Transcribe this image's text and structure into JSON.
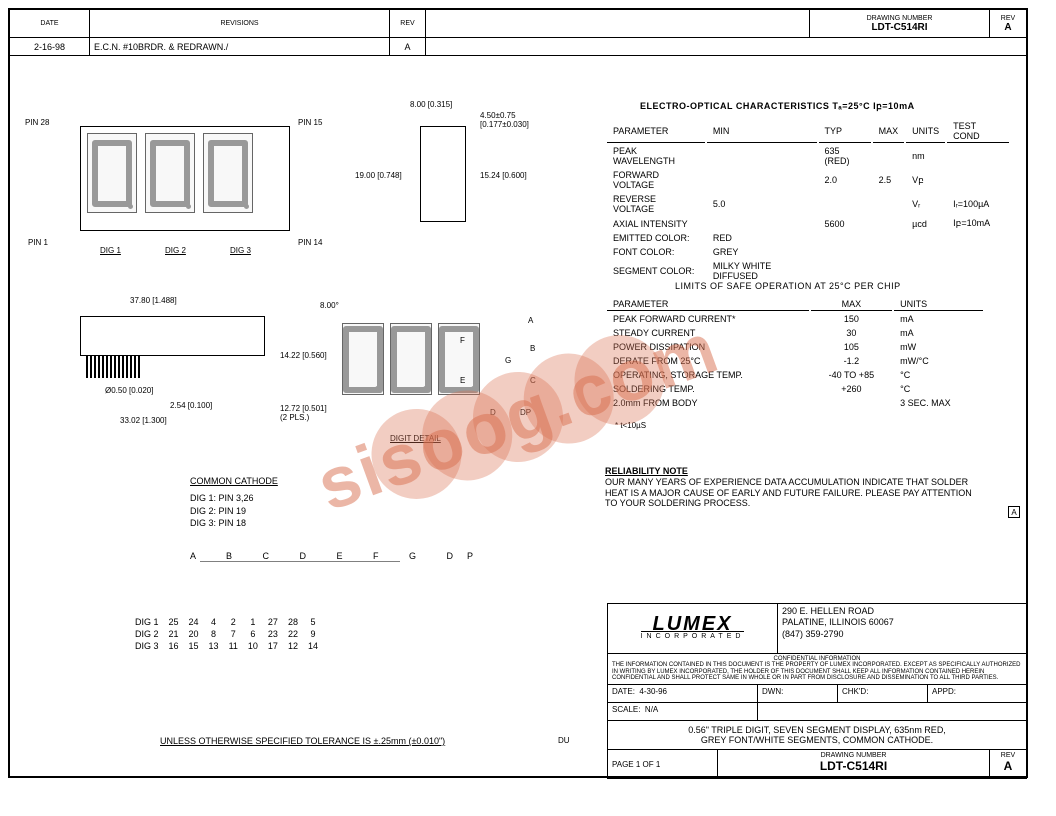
{
  "header": {
    "date_label": "DATE",
    "date_value": "2-16-98",
    "revisions_label": "REVISIONS",
    "revisions_value": "E.C.N. #10BRDR. & REDRAWN./",
    "rev_label": "REV",
    "rev_value": "A",
    "drawing_label": "DRAWING NUMBER",
    "drawing_value": "LDT-C514RI",
    "rev2_value": "A"
  },
  "electro": {
    "title": "ELECTRO-OPTICAL CHARACTERISTICS  Tₐ=25°C  Iբ=10mA",
    "cols": [
      "PARAMETER",
      "MIN",
      "TYP",
      "MAX",
      "UNITS",
      "TEST COND"
    ],
    "rows": [
      [
        "PEAK WAVELENGTH",
        "",
        "635 (RED)",
        "",
        "nm",
        ""
      ],
      [
        "FORWARD VOLTAGE",
        "",
        "2.0",
        "2.5",
        "Vբ",
        ""
      ],
      [
        "REVERSE VOLTAGE",
        "5.0",
        "",
        "",
        "Vᵣ",
        "Iᵣ=100µA"
      ],
      [
        "AXIAL INTENSITY",
        "",
        "5600",
        "",
        "µcd",
        "Iբ=10mA"
      ],
      [
        "EMITTED COLOR:",
        "RED",
        "",
        "",
        "",
        ""
      ],
      [
        "FONT COLOR:",
        "GREY",
        "",
        "",
        "",
        ""
      ],
      [
        "SEGMENT COLOR:",
        "MILKY WHITE DIFFUSED",
        "",
        "",
        "",
        ""
      ]
    ]
  },
  "limits": {
    "title": "LIMITS OF SAFE OPERATION AT 25°C PER CHIP",
    "cols": [
      "PARAMETER",
      "MAX",
      "UNITS"
    ],
    "rows": [
      [
        "PEAK FORWARD CURRENT*",
        "150",
        "mA"
      ],
      [
        "STEADY CURRENT",
        "30",
        "mA"
      ],
      [
        "POWER DISSIPATION",
        "105",
        "mW"
      ],
      [
        "DERATE FROM 25°C",
        "-1.2",
        "mW/°C"
      ],
      [
        "OPERATING, STORAGE TEMP.",
        "-40 TO +85",
        "°C"
      ],
      [
        "SOLDERING TEMP.",
        "+260",
        "°C"
      ],
      [
        "2.0mm FROM BODY",
        "",
        "3 SEC. MAX"
      ]
    ],
    "note": "* t<10µS"
  },
  "reliability": {
    "title": "RELIABILITY NOTE",
    "text": "OUR MANY YEARS OF EXPERIENCE DATA ACCUMULATION INDICATE THAT SOLDER HEAT IS A MAJOR CAUSE OF EARLY AND FUTURE FAILURE. PLEASE PAY ATTENTION TO YOUR SOLDERING PROCESS."
  },
  "titleblock": {
    "company": "LUMEX",
    "company_sub": "INCORPORATED",
    "addr1": "290 E. HELLEN ROAD",
    "addr2": "PALATINE, ILLINOIS  60067",
    "phone": "(847) 359-2790",
    "confidential_title": "CONFIDENTIAL INFORMATION",
    "confidential": "THE INFORMATION CONTAINED IN THIS DOCUMENT IS THE PROPERTY OF LUMEX INCORPORATED. EXCEPT AS SPECIFICALLY AUTHORIZED IN WRITING BY LUMEX INCORPORATED, THE HOLDER OF THIS DOCUMENT SHALL KEEP ALL INFORMATION CONTAINED HEREIN CONFIDENTIAL AND SHALL PROTECT SAME IN WHOLE OR IN PART FROM DISCLOSURE AND DISSEMINATION TO ALL THIRD PARTIES.",
    "date_label": "DATE:",
    "date_value": "4-30-96",
    "dwn_label": "DWN:",
    "chkd_label": "CHK'D:",
    "appd_label": "APPD:",
    "scale_label": "SCALE:",
    "scale_value": "N/A",
    "description1": "0.56\" TRIPLE DIGIT, SEVEN SEGMENT DISPLAY, 635nm RED,",
    "description2": "GREY FONT/WHITE SEGMENTS, COMMON CATHODE.",
    "page_label": "PAGE  1  OF  1",
    "drawing_label": "DRAWING NUMBER",
    "drawing_value": "LDT-C514RI",
    "rev_label": "REV",
    "rev_value": "A"
  },
  "dims": {
    "pin28": "PIN 28",
    "pin15": "PIN 15",
    "pin1": "PIN 1",
    "pin14": "PIN 14",
    "dig1": "DIG 1",
    "dig2": "DIG 2",
    "dig3": "DIG 3",
    "d_800": "8.00 [0.315]",
    "d_450": "4.50±0.75\n[0.177±0.030]",
    "d_1900": "19.00 [0.748]",
    "d_1524": "15.24 [0.600]",
    "d_3780": "37.80 [1.488]",
    "d_050": "Ø0.50 [0.020]",
    "d_254": "2.54 [0.100]",
    "d_3302": "33.02 [1.300]",
    "d_800b": "8.00°",
    "d_1422": "14.22 [0.560]",
    "d_1272": "12.72 [0.501]\n(2 PLS.)",
    "digit_detail": "DIGIT DETAIL",
    "seg_a": "A",
    "seg_b": "B",
    "seg_c": "C",
    "seg_d": "D",
    "seg_e": "E",
    "seg_f": "F",
    "seg_g": "G",
    "seg_dp": "DP"
  },
  "common_cathode": {
    "title": "COMMON CATHODE",
    "dig1": "DIG 1: PIN 3,26",
    "dig2": "DIG 2: PIN 19",
    "dig3": "DIG 3: PIN 18"
  },
  "pintable": {
    "headers": [
      "",
      "A",
      "B",
      "C",
      "D",
      "E",
      "F",
      "G",
      "DP"
    ],
    "rows": [
      [
        "DIG 1",
        "25",
        "24",
        "4",
        "2",
        "1",
        "27",
        "28",
        "5"
      ],
      [
        "DIG 2",
        "21",
        "20",
        "8",
        "7",
        "6",
        "23",
        "22",
        "9"
      ],
      [
        "DIG 3",
        "16",
        "15",
        "13",
        "11",
        "10",
        "17",
        "12",
        "14"
      ]
    ]
  },
  "tolerance": "UNLESS OTHERWISE SPECIFIED TOLERANCE IS ±.25mm (±0.010\")",
  "initials": "DU",
  "watermark": "sisoog.com"
}
